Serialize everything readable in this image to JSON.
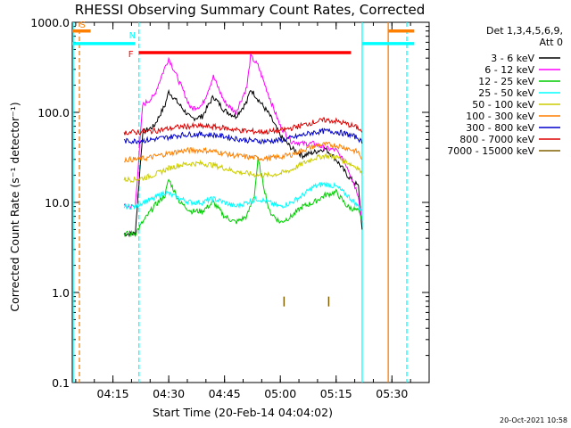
{
  "chart_data": {
    "type": "line",
    "title": "RHESSI Observing Summary Count Rates, Corrected",
    "xlabel": "Start Time (20-Feb-14 04:04:02)",
    "ylabel": "Corrected Count Rate (s⁻¹ detector⁻¹)",
    "yscale": "log",
    "ylim": [
      0.1,
      1000
    ],
    "y_ticks": [
      "0.1",
      "1.0",
      "10.0",
      "100.0",
      "1000.0"
    ],
    "x_ticks": [
      "04:15",
      "04:30",
      "04:45",
      "05:00",
      "05:15",
      "05:30"
    ],
    "xlim_minutes_after_0400": [
      4.07,
      100
    ],
    "legend_header": [
      "Det 1,3,4,5,6,9,",
      "Att 0"
    ],
    "legend_placement": "right",
    "series": [
      {
        "name": "3 - 6 keV",
        "color": "#000000",
        "x": [
          "04:18",
          "04:21",
          "04:23",
          "04:26",
          "04:29",
          "04:30",
          "04:33",
          "04:36",
          "04:39",
          "04:42",
          "04:45",
          "04:48",
          "04:51",
          "04:52",
          "04:53",
          "04:54",
          "04:57",
          "05:00",
          "05:03",
          "05:06",
          "05:09",
          "05:12",
          "05:15",
          "05:18",
          "05:21",
          "05:22"
        ],
        "y": [
          4.5,
          4.5,
          60,
          70,
          120,
          170,
          120,
          85,
          90,
          150,
          105,
          90,
          130,
          180,
          160,
          140,
          95,
          55,
          40,
          33,
          36,
          40,
          30,
          20,
          15,
          5
        ]
      },
      {
        "name": "6 - 12 keV",
        "color": "#ff00ff",
        "x": [
          "04:18",
          "04:21",
          "04:23",
          "04:26",
          "04:28",
          "04:30",
          "04:33",
          "04:36",
          "04:39",
          "04:42",
          "04:45",
          "04:48",
          "04:51",
          "04:52",
          "04:54",
          "04:57",
          "05:00",
          "05:03",
          "05:06",
          "05:09",
          "05:12",
          "05:15",
          "05:18",
          "05:21",
          "05:22"
        ],
        "y": [
          9,
          9,
          120,
          150,
          250,
          400,
          210,
          110,
          120,
          250,
          130,
          100,
          190,
          420,
          330,
          150,
          70,
          48,
          45,
          45,
          40,
          38,
          25,
          12,
          6
        ]
      },
      {
        "name": "12 - 25 keV",
        "color": "#00cc00",
        "x": [
          "04:18",
          "04:21",
          "04:23",
          "04:26",
          "04:29",
          "04:30",
          "04:33",
          "04:36",
          "04:39",
          "04:42",
          "04:45",
          "04:48",
          "04:51",
          "04:53",
          "04:54",
          "04:57",
          "05:00",
          "05:03",
          "05:06",
          "05:09",
          "05:12",
          "05:15",
          "05:18",
          "05:21",
          "05:22"
        ],
        "y": [
          4.5,
          4.5,
          6,
          9,
          12,
          18,
          10,
          8,
          8,
          10,
          7,
          6,
          7,
          12,
          30,
          8,
          6,
          7,
          9,
          10,
          12,
          13,
          9,
          8,
          6
        ]
      },
      {
        "name": "25 - 50 keV",
        "color": "#00ffff",
        "x": [
          "04:18",
          "04:21",
          "04:23",
          "04:26",
          "04:29",
          "04:33",
          "04:36",
          "04:39",
          "04:42",
          "04:45",
          "04:48",
          "04:51",
          "04:54",
          "04:57",
          "05:00",
          "05:03",
          "05:06",
          "05:09",
          "05:12",
          "05:15",
          "05:18",
          "05:21",
          "05:22"
        ],
        "y": [
          9,
          9,
          10,
          11,
          13,
          11,
          10,
          10,
          11,
          10,
          9,
          10,
          11,
          10,
          9,
          10,
          12,
          15,
          16,
          15,
          12,
          9,
          8
        ]
      },
      {
        "name": "50 - 100 keV",
        "color": "#cccc00",
        "x": [
          "04:18",
          "04:21",
          "04:24",
          "04:27",
          "04:30",
          "04:33",
          "04:36",
          "04:39",
          "04:42",
          "04:45",
          "04:48",
          "04:51",
          "04:54",
          "04:57",
          "05:00",
          "05:03",
          "05:06",
          "05:09",
          "05:12",
          "05:15",
          "05:18",
          "05:21",
          "05:22"
        ],
        "y": [
          18,
          18,
          19,
          21,
          24,
          26,
          27,
          27,
          26,
          24,
          22,
          21,
          20,
          20,
          21,
          23,
          27,
          31,
          33,
          32,
          28,
          24,
          20
        ]
      },
      {
        "name": "100 - 300 keV",
        "color": "#ff7f00",
        "x": [
          "04:18",
          "04:21",
          "04:24",
          "04:27",
          "04:30",
          "04:33",
          "04:36",
          "04:39",
          "04:42",
          "04:45",
          "04:48",
          "04:51",
          "04:54",
          "04:57",
          "05:00",
          "05:03",
          "05:06",
          "05:09",
          "05:12",
          "05:15",
          "05:18",
          "05:21",
          "05:22"
        ],
        "y": [
          30,
          30,
          31,
          33,
          35,
          37,
          38,
          38,
          37,
          35,
          33,
          32,
          31,
          31,
          32,
          34,
          38,
          42,
          44,
          43,
          40,
          36,
          30
        ]
      },
      {
        "name": "300 - 800 keV",
        "color": "#0000cc",
        "x": [
          "04:18",
          "04:21",
          "04:24",
          "04:27",
          "04:30",
          "04:33",
          "04:36",
          "04:39",
          "04:42",
          "04:45",
          "04:48",
          "04:51",
          "04:54",
          "04:57",
          "05:00",
          "05:03",
          "05:06",
          "05:09",
          "05:12",
          "05:15",
          "05:18",
          "05:21",
          "05:22"
        ],
        "y": [
          48,
          48,
          49,
          51,
          53,
          56,
          57,
          57,
          56,
          54,
          51,
          49,
          48,
          48,
          49,
          52,
          56,
          60,
          62,
          61,
          57,
          52,
          45
        ]
      },
      {
        "name": "800 - 7000 keV",
        "color": "#dd0000",
        "x": [
          "04:18",
          "04:21",
          "04:24",
          "04:27",
          "04:30",
          "04:33",
          "04:36",
          "04:39",
          "04:42",
          "04:45",
          "04:48",
          "04:51",
          "04:54",
          "04:57",
          "05:00",
          "05:03",
          "05:06",
          "05:09",
          "05:12",
          "05:15",
          "05:18",
          "05:21",
          "05:22"
        ],
        "y": [
          60,
          60,
          61,
          63,
          66,
          69,
          70,
          70,
          69,
          67,
          64,
          62,
          61,
          61,
          63,
          67,
          72,
          78,
          82,
          80,
          74,
          67,
          60
        ]
      },
      {
        "name": "7000 - 15000 keV",
        "color": "#806000",
        "x": [
          "05:01",
          "05:01",
          "05:13",
          "05:13"
        ],
        "y": [
          0.7,
          0.9,
          0.7,
          0.9
        ]
      }
    ],
    "flag_bars": [
      {
        "label": "S",
        "color": "#ff7f00",
        "x_start": "04:04",
        "x_end": "04:09",
        "level": 800
      },
      {
        "label": "N",
        "color": "#00ffff",
        "x_start": "04:04",
        "x_end": "04:21",
        "level": 580
      },
      {
        "label": "",
        "color": "#00ffff",
        "x_start": "05:22",
        "x_end": "05:36",
        "level": 580
      },
      {
        "label": "",
        "color": "#ff7f00",
        "x_start": "05:29",
        "x_end": "05:36",
        "level": 800
      },
      {
        "label": "F",
        "color": "#ff0000",
        "x_start": "04:22",
        "x_end": "05:19",
        "level": 460
      }
    ],
    "vertical_lines": [
      {
        "time": "04:06",
        "color": "#ff7f00",
        "style": "dashed"
      },
      {
        "time": "04:04",
        "color": "#00ffff",
        "style": "solid"
      },
      {
        "time": "04:22",
        "color": "#00ffff",
        "style": "dashed"
      },
      {
        "time": "05:22",
        "color": "#00ffff",
        "style": "solid"
      },
      {
        "time": "05:29",
        "color": "#ff7f00",
        "style": "solid"
      },
      {
        "time": "05:34",
        "color": "#00ffff",
        "style": "dashed"
      }
    ]
  },
  "footer": {
    "stamp": "20-Oct-2021 10:58"
  }
}
